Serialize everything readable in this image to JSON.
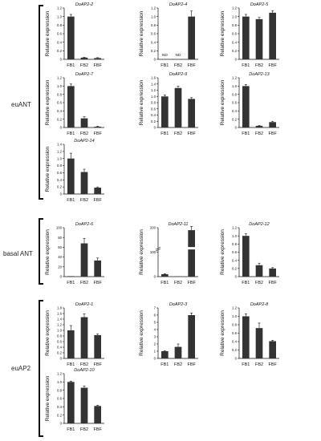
{
  "groups": [
    {
      "label": "euANT"
    },
    {
      "label": "basal ANT"
    },
    {
      "label": "euAP2"
    }
  ],
  "chart_data": [
    {
      "type": "bar",
      "title": "DoAP2-2",
      "ylabel": "Relative expression",
      "categories": [
        "FB1",
        "FB2",
        "FBF"
      ],
      "values": [
        1.0,
        0.04,
        0.03
      ],
      "errors": [
        0.05,
        0.01,
        0.01
      ],
      "ylim": [
        0,
        1.2
      ],
      "yticks": [
        0,
        0.2,
        0.4,
        0.6,
        0.8,
        1.0,
        1.2
      ],
      "yticklabels": [
        "0",
        "0.2",
        "0.4",
        "0.6",
        "0.8",
        "1.0",
        "1.2"
      ]
    },
    {
      "type": "bar",
      "title": "DoAP2-4",
      "ylabel": "Relative expression",
      "categories": [
        "FB1",
        "FB2",
        "FBF"
      ],
      "values": [
        0,
        0,
        1.0
      ],
      "errors": [
        0,
        0,
        0.13
      ],
      "annotations": [
        "ND",
        "ND",
        ""
      ],
      "ylim": [
        0,
        1.2
      ],
      "yticks": [
        0,
        0.2,
        0.4,
        0.6,
        0.8,
        1.0,
        1.2
      ],
      "yticklabels": [
        "0",
        "0.2",
        "0.4",
        "0.6",
        "0.8",
        "1.0",
        "1.2"
      ]
    },
    {
      "type": "bar",
      "title": "DoAP2-5",
      "ylabel": "Relative expression",
      "categories": [
        "FB1",
        "FB2",
        "FBF"
      ],
      "values": [
        1.0,
        0.94,
        1.09
      ],
      "errors": [
        0.05,
        0.04,
        0.05
      ],
      "ylim": [
        0,
        1.2
      ],
      "yticks": [
        0,
        0.2,
        0.4,
        0.6,
        0.8,
        1.0,
        1.2
      ],
      "yticklabels": [
        "0",
        "0.2",
        "0.4",
        "0.6",
        "0.8",
        "1.0",
        "1.2"
      ]
    },
    {
      "type": "bar",
      "title": "DoAP2-7",
      "ylabel": "Relative expression",
      "categories": [
        "FB1",
        "FB2",
        "FBF"
      ],
      "values": [
        1.0,
        0.22,
        0.02
      ],
      "errors": [
        0.05,
        0.04,
        0.01
      ],
      "ylim": [
        0,
        1.2
      ],
      "yticks": [
        0,
        0.2,
        0.4,
        0.6,
        0.8,
        1.0,
        1.2
      ],
      "yticklabels": [
        "0",
        "0.2",
        "0.4",
        "0.6",
        "0.8",
        "1.0",
        "1.2"
      ]
    },
    {
      "type": "bar",
      "title": "DoAP2-9",
      "ylabel": "Relative expression",
      "categories": [
        "FB1",
        "FB2",
        "FBF"
      ],
      "values": [
        1.0,
        1.27,
        0.92
      ],
      "errors": [
        0.05,
        0.06,
        0.04
      ],
      "ylim": [
        0,
        1.6
      ],
      "yticks": [
        0,
        0.2,
        0.4,
        0.6,
        0.8,
        1.0,
        1.2,
        1.4,
        1.6
      ],
      "yticklabels": [
        "0",
        "0.2",
        "0.4",
        "0.6",
        "0.8",
        "1.0",
        "1.2",
        "1.4",
        "1.6"
      ]
    },
    {
      "type": "bar",
      "title": "DoAP2-13",
      "ylabel": "Relative expression",
      "categories": [
        "FB1",
        "FB2",
        "FBF"
      ],
      "values": [
        1.0,
        0.04,
        0.13
      ],
      "errors": [
        0.04,
        0.01,
        0.02
      ],
      "ylim": [
        0,
        1.2
      ],
      "yticks": [
        0,
        0.2,
        0.4,
        0.6,
        0.8,
        1.0,
        1.2
      ],
      "yticklabels": [
        "0",
        "0.2",
        "0.4",
        "0.6",
        "0.8",
        "1.0",
        "1.2"
      ]
    },
    {
      "type": "bar",
      "title": "DoAP2-14",
      "ylabel": "Relative expression",
      "categories": [
        "FB1",
        "FB2",
        "FBF"
      ],
      "values": [
        1.0,
        0.62,
        0.18
      ],
      "errors": [
        0.15,
        0.08,
        0.02
      ],
      "ylim": [
        0,
        1.4
      ],
      "yticks": [
        0,
        0.2,
        0.4,
        0.6,
        0.8,
        1.0,
        1.2,
        1.4
      ],
      "yticklabels": [
        "0",
        "0.2",
        "0.4",
        "0.6",
        "0.8",
        "1.0",
        "1.2",
        "1.4"
      ]
    },
    {
      "type": "bar",
      "title": "DoAP2-6",
      "ylabel": "Relative expression",
      "categories": [
        "FB1",
        "FB2",
        "FBF"
      ],
      "values": [
        1,
        68,
        33
      ],
      "errors": [
        0,
        10,
        5
      ],
      "ylim": [
        0,
        100
      ],
      "yticks": [
        0,
        20,
        40,
        60,
        80,
        100
      ],
      "yticklabels": [
        "0",
        "20",
        "40",
        "60",
        "80",
        "100"
      ]
    },
    {
      "type": "bar",
      "title": "DoAP2-11",
      "ylabel": "Relative expression",
      "categories": [
        "FB1",
        "FB2",
        "FBF"
      ],
      "values": [
        10,
        1,
        190
      ],
      "errors": [
        2,
        0,
        15
      ],
      "ylim": [
        0,
        200
      ],
      "yticks": [
        0,
        100,
        200
      ],
      "yticklabels": [
        "0",
        "100",
        "200"
      ],
      "axis_break": true
    },
    {
      "type": "bar",
      "title": "DoAP2-12",
      "ylabel": "Relative expression",
      "categories": [
        "FB1",
        "FB2",
        "FBF"
      ],
      "values": [
        1.0,
        0.28,
        0.2
      ],
      "errors": [
        0.05,
        0.05,
        0.02
      ],
      "ylim": [
        0,
        1.2
      ],
      "yticks": [
        0,
        0.2,
        0.4,
        0.6,
        0.8,
        1.0,
        1.2
      ],
      "yticklabels": [
        "0",
        "0.2",
        "0.4",
        "0.6",
        "0.8",
        "1.0",
        "1.2"
      ]
    },
    {
      "type": "bar",
      "title": "DoAP2-1",
      "ylabel": "Relative expression",
      "categories": [
        "FB1",
        "FB2",
        "FBF"
      ],
      "values": [
        1.0,
        1.47,
        0.83
      ],
      "errors": [
        0.17,
        0.12,
        0.04
      ],
      "ylim": [
        0,
        1.8
      ],
      "yticks": [
        0,
        0.2,
        0.4,
        0.6,
        0.8,
        1.0,
        1.2,
        1.4,
        1.6,
        1.8
      ],
      "yticklabels": [
        "0",
        "0.2",
        "0.4",
        "0.6",
        "0.8",
        "1.0",
        "1.2",
        "1.4",
        "1.6",
        "1.8"
      ]
    },
    {
      "type": "bar",
      "title": "DoAP2-3",
      "ylabel": "Relative expression",
      "categories": [
        "FB1",
        "FB2",
        "FBF"
      ],
      "values": [
        1.0,
        1.6,
        6.0
      ],
      "errors": [
        0.05,
        0.4,
        0.3
      ],
      "ylim": [
        0,
        7
      ],
      "yticks": [
        0,
        1,
        2,
        3,
        4,
        5,
        6,
        7
      ],
      "yticklabels": [
        "0",
        "1",
        "2",
        "3",
        "4",
        "5",
        "6",
        "7"
      ]
    },
    {
      "type": "bar",
      "title": "DoAP2-8",
      "ylabel": "Relative expression",
      "categories": [
        "FB1",
        "FB2",
        "FBF"
      ],
      "values": [
        1.0,
        0.72,
        0.41
      ],
      "errors": [
        0.06,
        0.12,
        0.02
      ],
      "ylim": [
        0,
        1.2
      ],
      "yticks": [
        0,
        0.2,
        0.4,
        0.6,
        0.8,
        1.0,
        1.2
      ],
      "yticklabels": [
        "0",
        "0.2",
        "0.4",
        "0.6",
        "0.8",
        "1.0",
        "1.2"
      ]
    },
    {
      "type": "bar",
      "title": "DoAP2-10",
      "ylabel": "Relative expression",
      "categories": [
        "FB1",
        "FB2",
        "FBF"
      ],
      "values": [
        1.0,
        0.86,
        0.42
      ],
      "errors": [
        0.02,
        0.04,
        0.02
      ],
      "ylim": [
        0,
        1.2
      ],
      "yticks": [
        0,
        0.2,
        0.4,
        0.6,
        0.8,
        1.0,
        1.2
      ],
      "yticklabels": [
        "0",
        "0.2",
        "0.4",
        "0.6",
        "0.8",
        "1.0",
        "1.2"
      ]
    }
  ]
}
